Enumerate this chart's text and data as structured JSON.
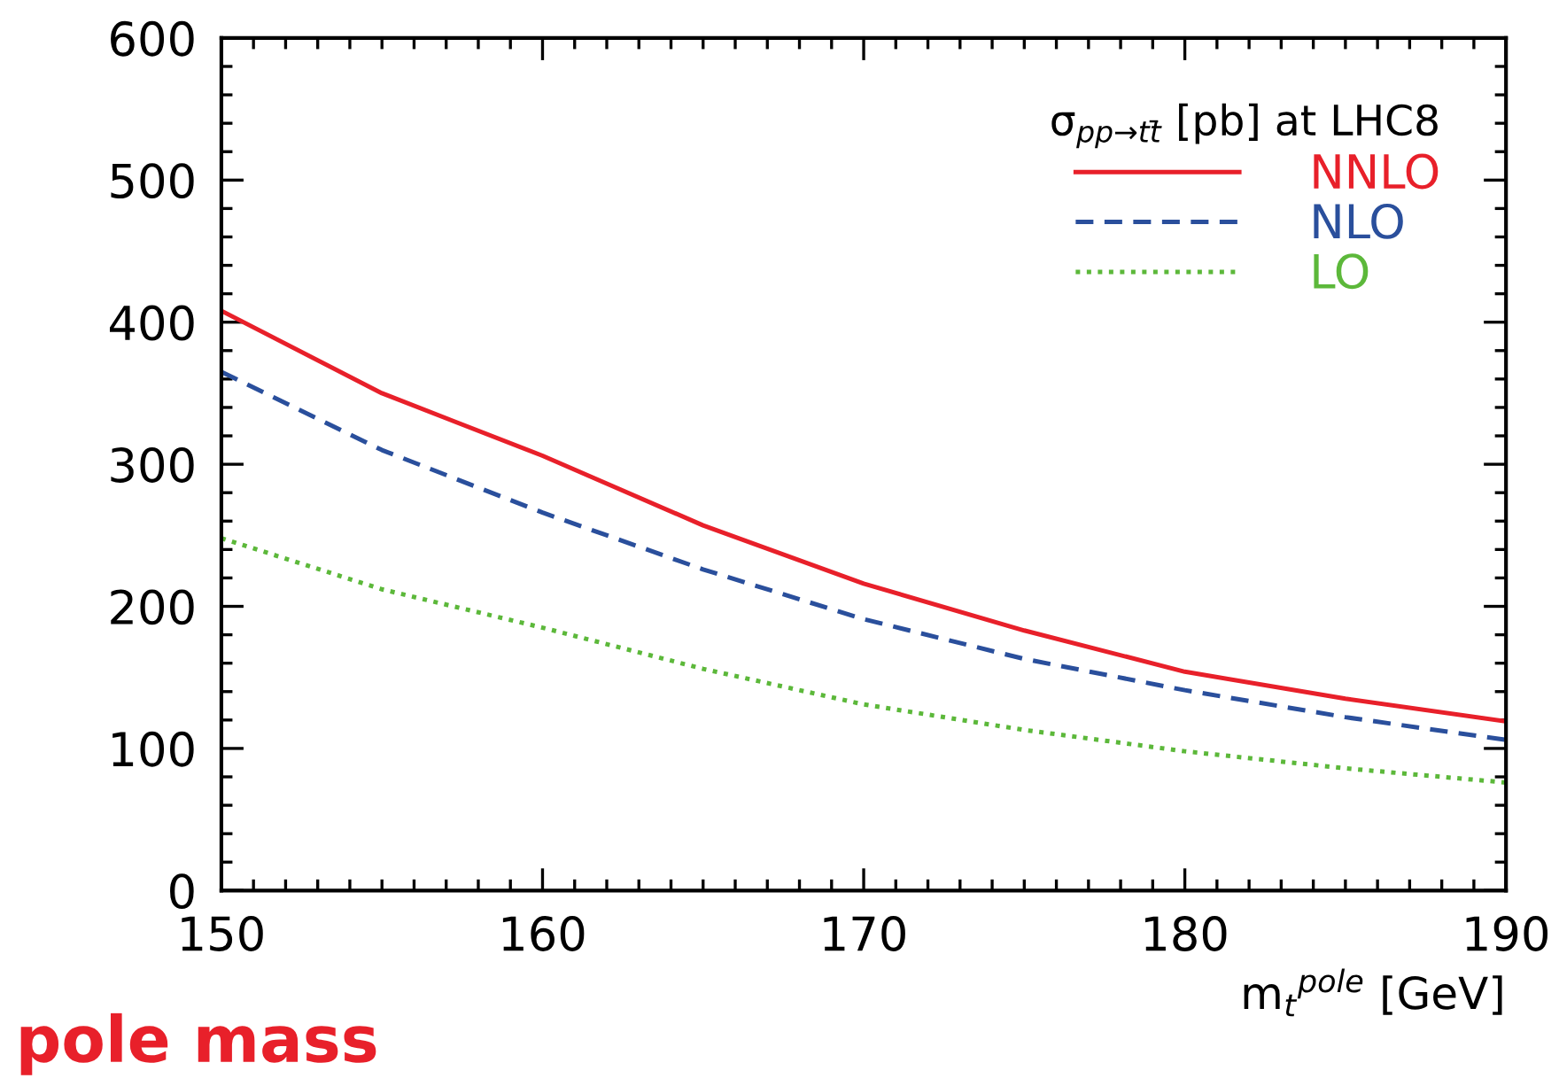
{
  "chart_data": {
    "type": "line",
    "xlabel": "m$_{t}$$^{pole}$ [GeV]",
    "legend_title": "σ$_{pp→tt̄}$ [pb] at LHC8",
    "x": [
      150,
      155,
      160,
      165,
      170,
      175,
      180,
      185,
      190
    ],
    "series": [
      {
        "name": "NNLO",
        "color": "#e8202a",
        "line_style": "solid",
        "values": [
          408,
          350,
          306,
          257,
          216,
          183,
          154,
          135,
          119
        ]
      },
      {
        "name": "NLO",
        "color": "#2a4f9c",
        "line_style": "dashed",
        "values": [
          365,
          310,
          266,
          226,
          191,
          163,
          141,
          122,
          106
        ]
      },
      {
        "name": "LO",
        "color": "#5cb83a",
        "line_style": "dotted",
        "values": [
          248,
          212,
          185,
          156,
          131,
          113,
          98,
          86,
          76
        ]
      }
    ],
    "xlim": [
      150,
      190
    ],
    "xticks": [
      150,
      160,
      170,
      180,
      190
    ],
    "ylim": [
      0,
      600
    ],
    "yticks": [
      0,
      100,
      200,
      300,
      400,
      500,
      600
    ],
    "grid": false,
    "legend": "top right",
    "marker": "none",
    "annotations": [
      "pole mass"
    ]
  }
}
